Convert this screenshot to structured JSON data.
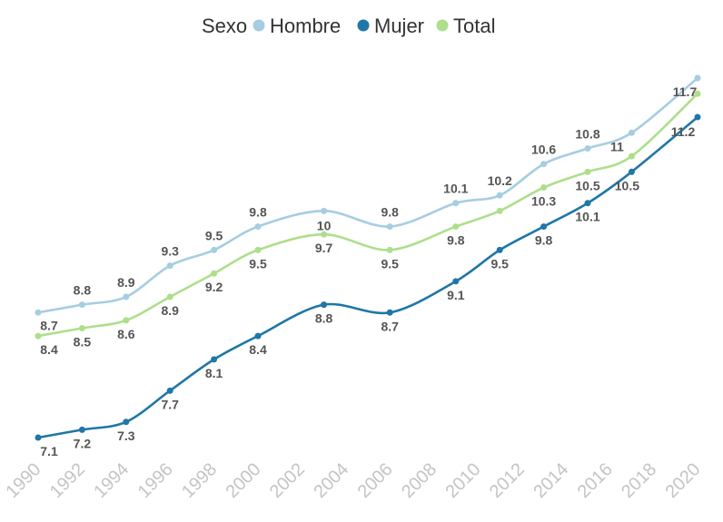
{
  "chart_data": {
    "type": "line",
    "legend": {
      "title": "Sexo",
      "position": "top-center"
    },
    "x": [
      1990,
      1992,
      1994,
      1996,
      1998,
      2000,
      2003,
      2006,
      2009,
      2011,
      2013,
      2015,
      2017,
      2020
    ],
    "x_ticks": [
      "1990",
      "1992",
      "1994",
      "1996",
      "1998",
      "2000",
      "2002",
      "2004",
      "2006",
      "2008",
      "2010",
      "2012",
      "2014",
      "2016",
      "2018",
      "2020"
    ],
    "xlim": [
      1990,
      2020
    ],
    "ylim": [
      6.95,
      12.0
    ],
    "grid": false,
    "series": [
      {
        "name": "Hombre",
        "color": "#a6cde1",
        "values": [
          8.7,
          8.8,
          8.9,
          9.3,
          9.5,
          9.8,
          10.0,
          9.8,
          10.1,
          10.2,
          10.6,
          10.8,
          11.0,
          11.7
        ],
        "labels": [
          "8.7",
          "8.8",
          "8.9",
          "9.3",
          "9.5",
          "9.8",
          "10",
          "9.8",
          "10.1",
          "10.2",
          "10.6",
          "10.8",
          "11",
          "11.7"
        ]
      },
      {
        "name": "Mujer",
        "color": "#1f77a7",
        "values": [
          7.1,
          7.2,
          7.3,
          7.7,
          8.1,
          8.4,
          8.8,
          8.7,
          9.1,
          9.5,
          9.8,
          10.1,
          10.5,
          11.2
        ],
        "labels": [
          "7.1",
          "7.2",
          "7.3",
          "7.7",
          "8.1",
          "8.4",
          "8.8",
          "8.7",
          "9.1",
          "9.5",
          "9.8",
          "10.1",
          "10.5",
          "11.2"
        ]
      },
      {
        "name": "Total",
        "color": "#addf8a",
        "values": [
          8.4,
          8.5,
          8.6,
          8.9,
          9.2,
          9.5,
          9.7,
          9.5,
          9.8,
          10.0,
          10.3,
          10.5,
          10.7,
          11.5
        ],
        "labels": [
          "8.4",
          "8.5",
          "8.6",
          "8.9",
          "9.2",
          "9.5",
          "9.7",
          "9.5",
          "9.8",
          "",
          "10.3",
          "10.5",
          "",
          ""
        ]
      }
    ]
  }
}
